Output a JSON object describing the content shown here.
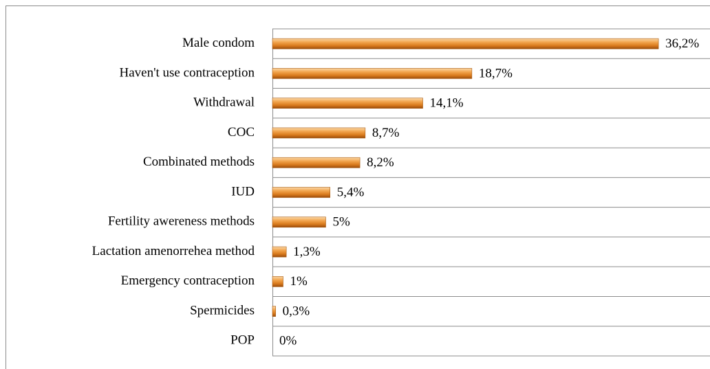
{
  "chart_data": {
    "type": "bar",
    "orientation": "horizontal",
    "categories": [
      "Male condom",
      "Haven't use contraception",
      "Withdrawal",
      "COC",
      "Combinated methods",
      "IUD",
      "Fertility awereness methods",
      "Lactation amenorrehea method",
      "Emergency contraception",
      "Spermicides",
      "POP"
    ],
    "values": [
      36.2,
      18.7,
      14.1,
      8.7,
      8.2,
      5.4,
      5,
      1.3,
      1,
      0.3,
      0
    ],
    "value_labels": [
      "36,2%",
      "18,7%",
      "14,1%",
      "8,7%",
      "8,2%",
      "5,4%",
      "5%",
      "1,3%",
      "1%",
      "0,3%",
      "0%"
    ],
    "color": "#e08a2a",
    "xlim": [
      0,
      40
    ]
  }
}
